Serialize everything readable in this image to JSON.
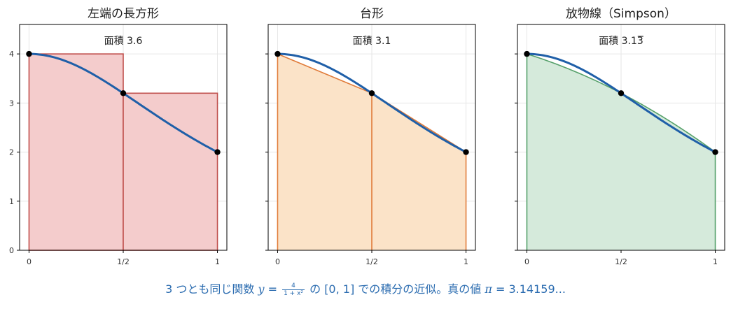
{
  "chart_data": [
    {
      "type": "area",
      "title": "左端の長方形",
      "method": "left-rectangle",
      "area_label": "面積 3.6",
      "x_ticks": [
        "0",
        "1/2",
        "1"
      ],
      "y_ticks": [
        "0",
        "1",
        "2",
        "3",
        "4"
      ],
      "xlim": [
        -0.05,
        1.05
      ],
      "ylim": [
        0,
        4.6
      ],
      "grid": true,
      "curve": {
        "function": "4/(1+x^2)",
        "x": [
          0,
          0.5,
          1
        ],
        "y": [
          4,
          3.2,
          2
        ]
      },
      "points": [
        {
          "x": 0,
          "y": 4
        },
        {
          "x": 0.5,
          "y": 3.2
        },
        {
          "x": 1,
          "y": 2
        }
      ],
      "fill_color": "#f4cccc",
      "edge_color": "#c0504d",
      "curve_color": "#1f5fa8"
    },
    {
      "type": "area",
      "title": "台形",
      "method": "trapezoid",
      "area_label": "面積 3.1",
      "x_ticks": [
        "0",
        "1/2",
        "1"
      ],
      "y_ticks": [],
      "xlim": [
        -0.05,
        1.05
      ],
      "ylim": [
        0,
        4.6
      ],
      "grid": true,
      "curve": {
        "function": "4/(1+x^2)",
        "x": [
          0,
          0.5,
          1
        ],
        "y": [
          4,
          3.2,
          2
        ]
      },
      "points": [
        {
          "x": 0,
          "y": 4
        },
        {
          "x": 0.5,
          "y": 3.2
        },
        {
          "x": 1,
          "y": 2
        }
      ],
      "fill_color": "#fbe3c8",
      "edge_color": "#e07b39",
      "curve_color": "#1f5fa8"
    },
    {
      "type": "area",
      "title": "放物線（Simpson）",
      "method": "simpson",
      "area_label": "面積 3.13",
      "area_label_repeat": "3",
      "x_ticks": [
        "0",
        "1/2",
        "1"
      ],
      "y_ticks": [],
      "xlim": [
        -0.05,
        1.05
      ],
      "ylim": [
        0,
        4.6
      ],
      "grid": true,
      "curve": {
        "function": "4/(1+x^2)",
        "x": [
          0,
          0.5,
          1
        ],
        "y": [
          4,
          3.2,
          2
        ]
      },
      "points": [
        {
          "x": 0,
          "y": 4
        },
        {
          "x": 0.5,
          "y": 3.2
        },
        {
          "x": 1,
          "y": 2
        }
      ],
      "fill_color": "#d5eadb",
      "edge_color": "#55a06a",
      "curve_color": "#1f5fa8"
    }
  ],
  "caption": {
    "prefix": "3 つとも同じ関数 ",
    "y_var": "y",
    "equals": " = ",
    "frac_num": "4",
    "frac_den": "1 + x²",
    "mid": " の [0, 1] での積分の近似。真の値 ",
    "pi": "π",
    "pi_value": " = 3.14159..."
  }
}
